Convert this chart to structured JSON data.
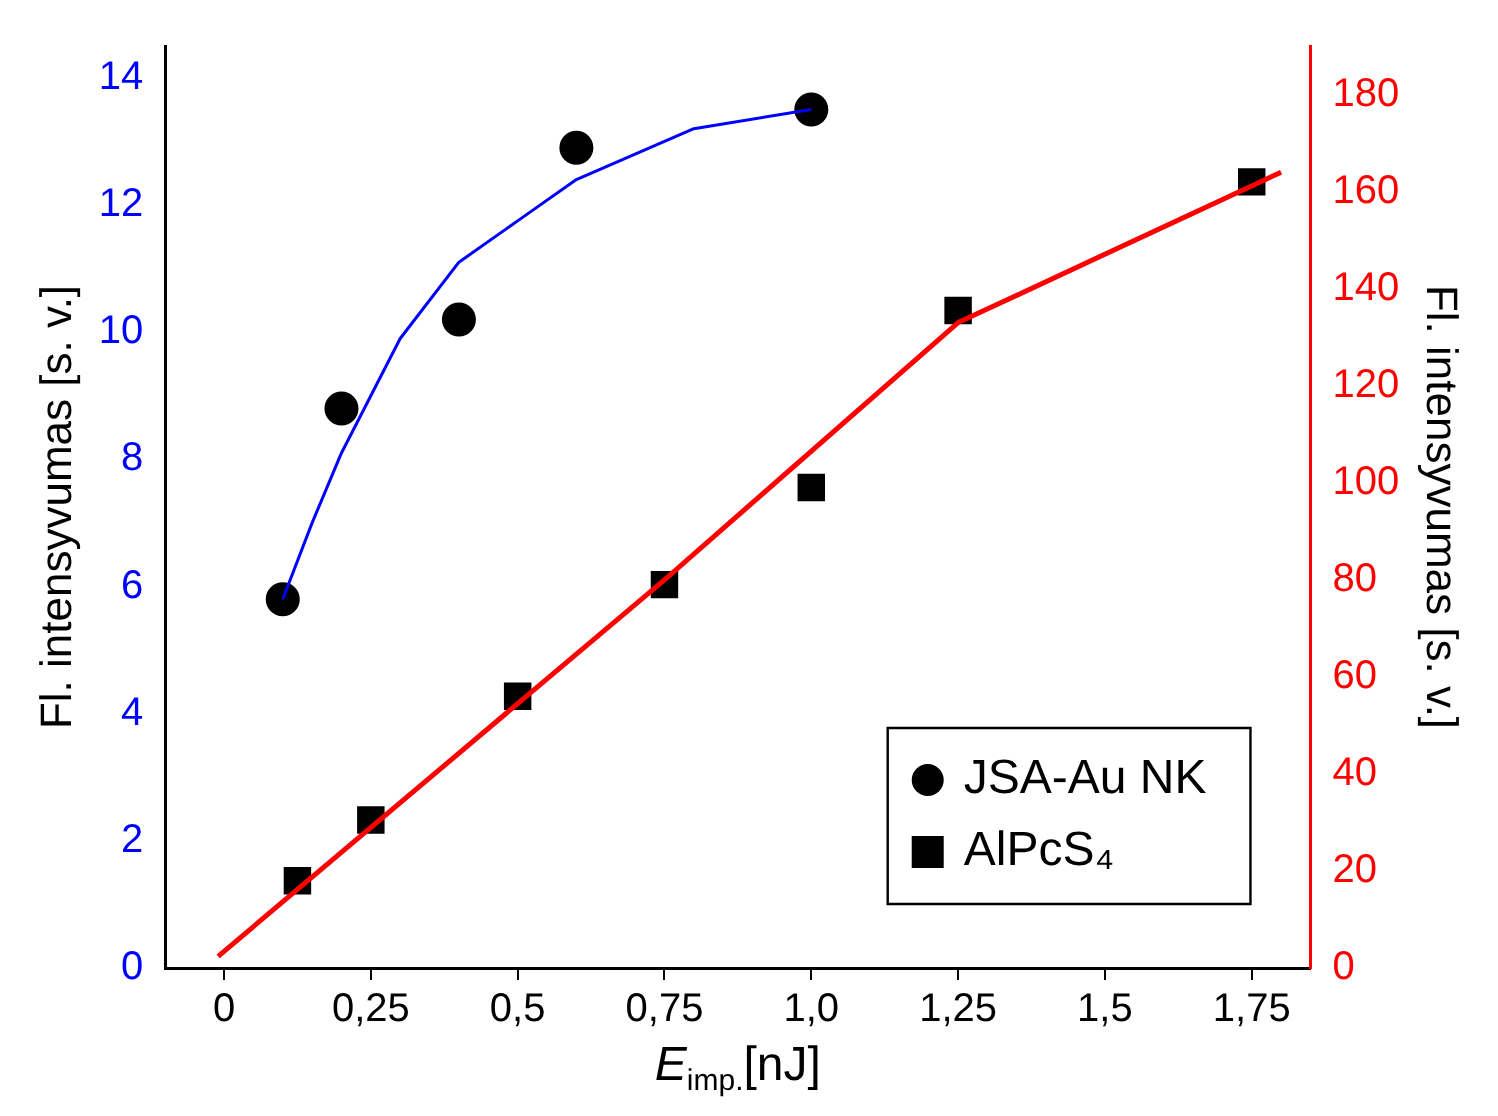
{
  "chart_data": {
    "type": "scatter",
    "xlabel": "E$_{imp.}$[nJ]",
    "ylabel": "Fl. intensyvumas [s. v.]",
    "y2label": "Fl. intensyvumas [s. v.]",
    "xlim": [
      -0.1,
      1.85
    ],
    "xticks": [
      {
        "value": 0,
        "label": "0"
      },
      {
        "value": 0.25,
        "label": "0,25"
      },
      {
        "value": 0.5,
        "label": "0,5"
      },
      {
        "value": 0.75,
        "label": "0,75"
      },
      {
        "value": 1,
        "label": "1,0"
      },
      {
        "value": 1.25,
        "label": "1,25"
      },
      {
        "value": 1.5,
        "label": "1,5"
      },
      {
        "value": 1.75,
        "label": "1,75"
      }
    ],
    "ylim": [
      0,
      14.5
    ],
    "yticks": [
      0,
      2,
      4,
      6,
      8,
      10,
      12,
      14
    ],
    "y2lim": [
      0,
      190
    ],
    "y2ticks": [
      0,
      20,
      40,
      60,
      80,
      100,
      120,
      140,
      160,
      180
    ],
    "grid": false,
    "legend": "bottom right",
    "series": [
      {
        "name": "JSA-Au NK",
        "type": "scatter",
        "marker": "circle",
        "color": "#000000",
        "x": [
          0.1,
          0.2,
          0.4,
          0.6,
          1.0
        ],
        "values": [
          5.8,
          8.8,
          10.2,
          12.9,
          13.5
        ]
      },
      {
        "name": "AlPcS₄",
        "type": "scatter",
        "marker": "square",
        "axis": "y2",
        "color": "#000000",
        "x": [
          0.125,
          0.25,
          0.5,
          0.75,
          1.0,
          1.25,
          1.75
        ],
        "values": [
          18,
          30.5,
          56,
          79,
          99,
          135.5,
          162
        ]
      },
      {
        "type": "line",
        "marker": "none",
        "color": "#0000ff",
        "x": [
          0.1,
          0.15,
          0.2,
          0.3,
          0.4,
          0.5,
          0.6,
          0.8,
          1.0
        ],
        "values": [
          5.8,
          7.0,
          8.1,
          9.9,
          11.1,
          11.75,
          12.4,
          13.2,
          13.5
        ]
      },
      {
        "type": "line",
        "marker": "none",
        "axis": "y2",
        "color": "#ff0000",
        "x": [
          -0.01,
          0.75,
          1.25,
          1.8
        ],
        "values": [
          2.4,
          80,
          133,
          164
        ]
      }
    ]
  }
}
